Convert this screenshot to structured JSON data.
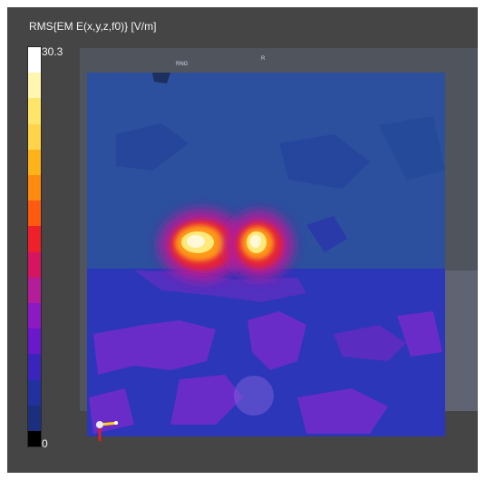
{
  "legend": {
    "title": "RMS{EM E(x,y,z,f0)} [V/m]",
    "max_label": "30.3",
    "min_label": "0",
    "colors": [
      "#ffffff",
      "#fff6b0",
      "#ffe66a",
      "#ffd34a",
      "#ffb21a",
      "#ff8a10",
      "#ff5a10",
      "#f0202a",
      "#d51560",
      "#b41c9a",
      "#8d19c4",
      "#6a18cc",
      "#3a24bc",
      "#2230a0",
      "#1b2f7e",
      "#000000"
    ]
  },
  "scene": {
    "marker_a": "RNG",
    "marker_b": "R"
  },
  "field_colors": {
    "background": "#454545",
    "field_low": "#2a4da8",
    "field_lower_panel": "#2a39b6",
    "field_purple": "#7b2fd0",
    "hotspot_core": "#fff8c4",
    "hotspot_outer": "#ff4d2a"
  }
}
